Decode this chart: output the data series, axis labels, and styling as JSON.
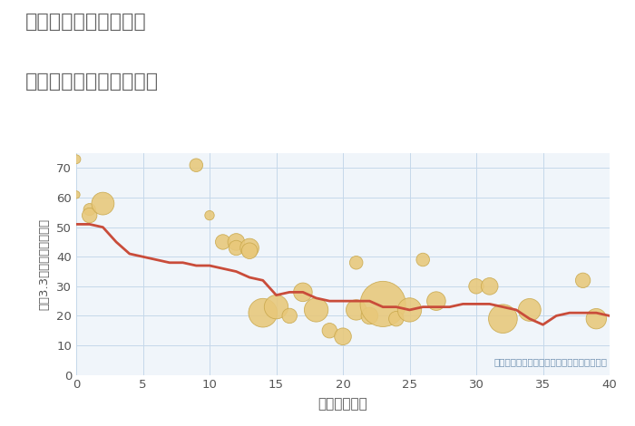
{
  "title_line1": "千葉県匝瑳市横須賀の",
  "title_line2": "築年数別中古戸建て価格",
  "xlabel": "築年数（年）",
  "ylabel": "坪（3.3㎡）単価（万円）",
  "background_color": "#ffffff",
  "plot_background_color": "#f0f5fa",
  "line_color": "#c94c3a",
  "scatter_color": "#e8c87a",
  "scatter_edge_color": "#c9a84c",
  "annotation_text": "円の大きさは、取引のあった物件面積を示す",
  "annotation_color": "#7090b0",
  "title_color": "#666666",
  "axis_label_color": "#555555",
  "tick_color": "#555555",
  "grid_color": "#c5d8ea",
  "xlim": [
    0,
    40
  ],
  "ylim": [
    0,
    75
  ],
  "xticks": [
    0,
    5,
    10,
    15,
    20,
    25,
    30,
    35,
    40
  ],
  "yticks": [
    0,
    10,
    20,
    30,
    40,
    50,
    60,
    70
  ],
  "line_x": [
    0,
    1,
    2,
    3,
    4,
    5,
    6,
    7,
    8,
    9,
    10,
    11,
    12,
    13,
    14,
    15,
    16,
    17,
    18,
    19,
    20,
    21,
    22,
    23,
    24,
    25,
    26,
    27,
    28,
    29,
    30,
    31,
    32,
    33,
    34,
    35,
    36,
    37,
    38,
    39,
    40
  ],
  "line_y": [
    51,
    51,
    50,
    45,
    41,
    40,
    39,
    38,
    38,
    37,
    37,
    36,
    35,
    33,
    32,
    27,
    28,
    28,
    26,
    25,
    25,
    25,
    25,
    23,
    23,
    22,
    23,
    23,
    23,
    24,
    24,
    24,
    23,
    22,
    19,
    17,
    20,
    21,
    21,
    21,
    20
  ],
  "scatter_x": [
    0,
    0,
    1,
    1,
    2,
    9,
    10,
    11,
    12,
    12,
    13,
    13,
    14,
    15,
    16,
    17,
    18,
    19,
    20,
    21,
    21,
    22,
    23,
    24,
    25,
    26,
    27,
    30,
    31,
    32,
    34,
    38,
    39
  ],
  "scatter_y": [
    73,
    61,
    56,
    54,
    58,
    71,
    54,
    45,
    45,
    43,
    43,
    42,
    21,
    23,
    20,
    28,
    22,
    15,
    13,
    22,
    38,
    20,
    24,
    19,
    22,
    39,
    25,
    30,
    30,
    19,
    22,
    32,
    19
  ],
  "scatter_size": [
    25,
    18,
    45,
    70,
    160,
    55,
    28,
    70,
    90,
    70,
    110,
    80,
    260,
    180,
    70,
    110,
    180,
    70,
    90,
    130,
    55,
    90,
    650,
    70,
    180,
    55,
    110,
    70,
    90,
    260,
    160,
    70,
    130
  ]
}
